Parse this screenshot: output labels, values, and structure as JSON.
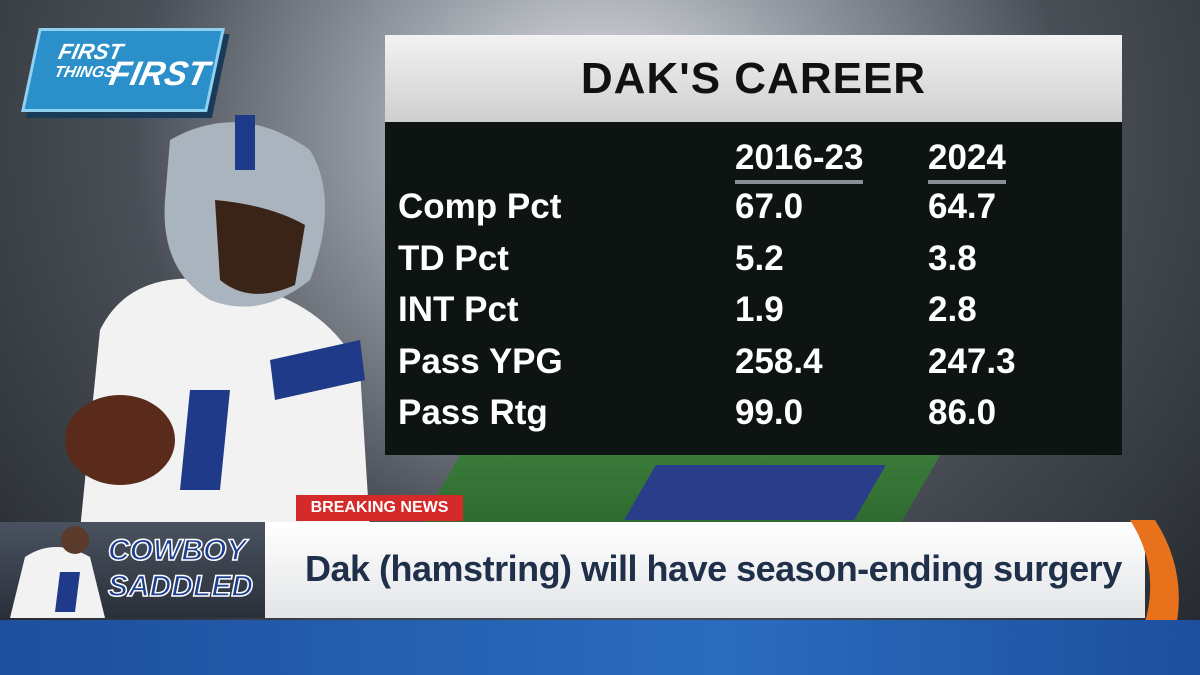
{
  "logo": {
    "lines": [
      "FIRST",
      "THINGS",
      "FIRST"
    ]
  },
  "table": {
    "title": "DAK'S CAREER",
    "headers": [
      "2016-23",
      "2024"
    ],
    "rows": [
      [
        "Comp Pct",
        "67.0",
        "64.7"
      ],
      [
        "TD Pct",
        "5.2",
        "3.8"
      ],
      [
        "INT Pct",
        "1.9",
        "2.8"
      ],
      [
        "Pass YPG",
        "258.4",
        "247.3"
      ],
      [
        "Pass Rtg",
        "99.0",
        "86.0"
      ]
    ]
  },
  "ticker": {
    "tag": "BREAKING NEWS",
    "show_lines": [
      "COWBOY",
      "SADDLED"
    ],
    "headline": "Dak (hamstring) will have season-ending surgery"
  }
}
